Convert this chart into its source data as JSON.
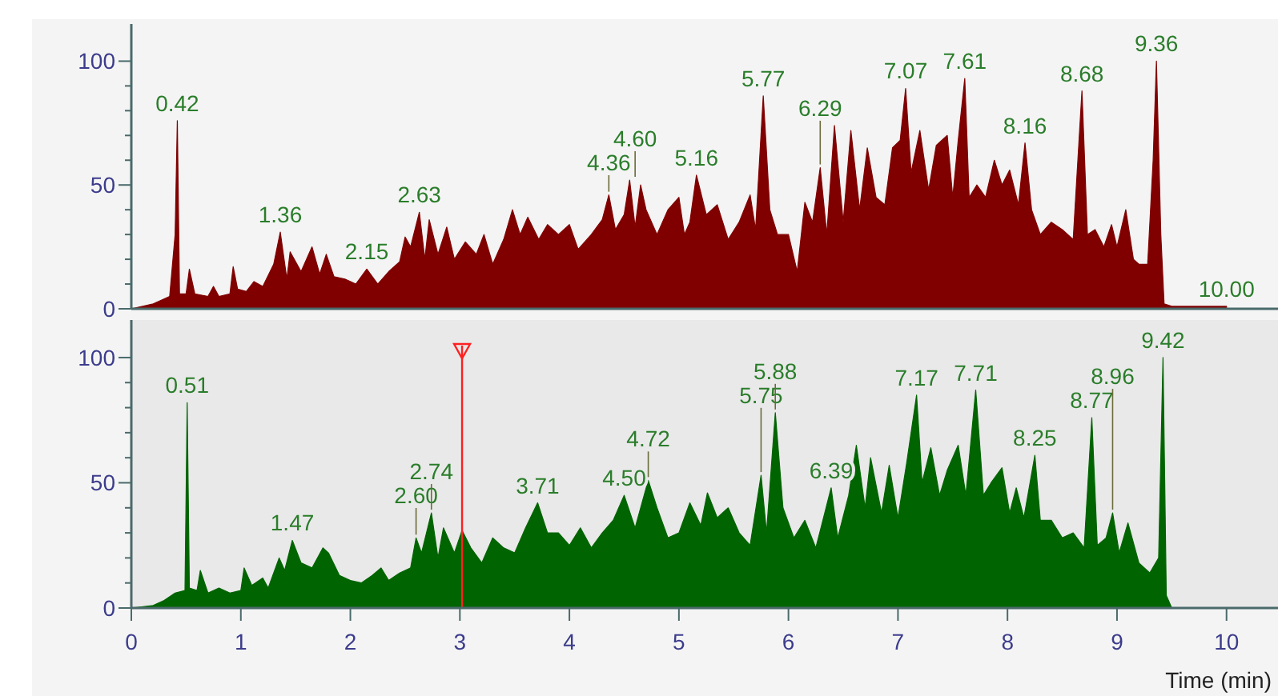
{
  "chart_data": [
    {
      "type": "area",
      "tick_labels": "y",
      "xlim": [
        0,
        10.47
      ],
      "ylim": [
        0,
        115
      ],
      "yticks": [
        0,
        {
          "value": 10,
          "label": null
        },
        {
          "value": 20,
          "label": null
        },
        {
          "value": 30,
          "label": null
        },
        {
          "value": 40,
          "label": null
        },
        50,
        {
          "value": 60,
          "label": null
        },
        {
          "value": 70,
          "label": null
        },
        {
          "value": 80,
          "label": null
        },
        {
          "value": 90,
          "label": null
        },
        100
      ],
      "x": [
        0,
        0.2,
        0.35,
        0.4,
        0.42,
        0.44,
        0.5,
        0.53,
        0.58,
        0.7,
        0.75,
        0.8,
        0.9,
        0.93,
        0.97,
        1.05,
        1.12,
        1.2,
        1.3,
        1.36,
        1.42,
        1.45,
        1.55,
        1.65,
        1.72,
        1.78,
        1.85,
        1.95,
        2.05,
        2.15,
        2.25,
        2.35,
        2.45,
        2.5,
        2.55,
        2.63,
        2.68,
        2.72,
        2.8,
        2.88,
        2.95,
        3.05,
        3.15,
        3.22,
        3.3,
        3.4,
        3.48,
        3.55,
        3.62,
        3.72,
        3.8,
        3.9,
        4.0,
        4.08,
        4.2,
        4.3,
        4.36,
        4.42,
        4.5,
        4.55,
        4.6,
        4.65,
        4.7,
        4.8,
        4.9,
        5.0,
        5.05,
        5.1,
        5.16,
        5.25,
        5.35,
        5.45,
        5.55,
        5.65,
        5.7,
        5.77,
        5.83,
        5.9,
        6.0,
        6.08,
        6.15,
        6.22,
        6.29,
        6.35,
        6.42,
        6.5,
        6.57,
        6.65,
        6.72,
        6.8,
        6.88,
        6.95,
        7.02,
        7.07,
        7.12,
        7.2,
        7.28,
        7.35,
        7.45,
        7.5,
        7.55,
        7.61,
        7.65,
        7.72,
        7.8,
        7.88,
        7.95,
        8.02,
        8.1,
        8.16,
        8.22,
        8.3,
        8.4,
        8.5,
        8.6,
        8.68,
        8.73,
        8.8,
        8.88,
        8.95,
        9.0,
        9.08,
        9.15,
        9.2,
        9.28,
        9.33,
        9.36,
        9.4,
        9.43,
        9.5,
        10.0
      ],
      "series": [
        {
          "color": "#800000",
          "values": [
            0,
            2,
            5,
            30,
            76,
            6,
            6,
            16,
            6,
            5,
            9,
            5,
            6,
            17,
            8,
            7,
            11,
            9,
            18,
            31,
            12,
            23,
            15,
            25,
            14,
            22,
            13,
            12,
            10,
            16,
            10,
            15,
            19,
            29,
            25,
            39,
            20,
            36,
            22,
            33,
            20,
            27,
            22,
            30,
            18,
            28,
            40,
            30,
            37,
            28,
            34,
            30,
            34,
            24,
            30,
            36,
            46,
            32,
            38,
            52,
            33,
            50,
            40,
            30,
            40,
            45,
            30,
            35,
            54,
            38,
            42,
            28,
            35,
            46,
            32,
            86,
            40,
            30,
            30,
            15,
            43,
            35,
            57,
            30,
            74,
            35,
            72,
            40,
            65,
            45,
            42,
            65,
            68,
            89,
            55,
            72,
            48,
            66,
            70,
            45,
            68,
            93,
            45,
            50,
            45,
            60,
            50,
            56,
            42,
            67,
            40,
            30,
            35,
            32,
            28,
            88,
            30,
            32,
            25,
            34,
            25,
            40,
            20,
            18,
            18,
            60,
            100,
            30,
            2,
            1,
            1
          ]
        }
      ],
      "annotations": [
        {
          "text": "0.42",
          "x": 0.42,
          "y": 76
        },
        {
          "text": "1.36",
          "x": 1.36,
          "y": 31
        },
        {
          "text": "2.15",
          "x": 2.15,
          "y": 16
        },
        {
          "text": "2.63",
          "x": 2.63,
          "y": 39
        },
        {
          "text": "4.36",
          "x": 4.36,
          "y": 46
        },
        {
          "text": "4.60",
          "x": 4.6,
          "y": 52
        },
        {
          "text": "5.16",
          "x": 5.16,
          "y": 54
        },
        {
          "text": "5.77",
          "x": 5.77,
          "y": 86
        },
        {
          "text": "6.29",
          "x": 6.29,
          "y": 57
        },
        {
          "text": "7.07",
          "x": 7.07,
          "y": 89
        },
        {
          "text": "7.61",
          "x": 7.61,
          "y": 93
        },
        {
          "text": "8.16",
          "x": 8.16,
          "y": 67
        },
        {
          "text": "8.68",
          "x": 8.68,
          "y": 88
        },
        {
          "text": "9.36",
          "x": 9.36,
          "y": 100
        },
        {
          "text": "10.00",
          "x": 10.0,
          "y": 1
        }
      ]
    },
    {
      "type": "area",
      "xlabel": "Time (min)",
      "xlim": [
        0,
        10.47
      ],
      "ylim": [
        0,
        115
      ],
      "xticks": [
        0,
        1,
        2,
        3,
        4,
        5,
        6,
        7,
        8,
        9,
        10
      ],
      "yticks": [
        0,
        {
          "value": 10,
          "label": null
        },
        {
          "value": 20,
          "label": null
        },
        {
          "value": 30,
          "label": null
        },
        {
          "value": 40,
          "label": null
        },
        50,
        {
          "value": 60,
          "label": null
        },
        {
          "value": 70,
          "label": null
        },
        {
          "value": 80,
          "label": null
        },
        {
          "value": 90,
          "label": null
        },
        100
      ],
      "x": [
        0,
        0.2,
        0.3,
        0.4,
        0.49,
        0.51,
        0.53,
        0.6,
        0.63,
        0.7,
        0.8,
        0.9,
        1.0,
        1.03,
        1.1,
        1.2,
        1.25,
        1.35,
        1.4,
        1.47,
        1.55,
        1.65,
        1.75,
        1.8,
        1.9,
        2.0,
        2.1,
        2.2,
        2.28,
        2.35,
        2.45,
        2.55,
        2.6,
        2.65,
        2.74,
        2.8,
        2.85,
        2.95,
        3.02,
        3.1,
        3.2,
        3.3,
        3.4,
        3.5,
        3.6,
        3.71,
        3.8,
        3.9,
        4.0,
        4.1,
        4.2,
        4.3,
        4.4,
        4.5,
        4.6,
        4.72,
        4.8,
        4.9,
        5.0,
        5.1,
        5.2,
        5.26,
        5.35,
        5.45,
        5.55,
        5.65,
        5.75,
        5.8,
        5.88,
        5.95,
        6.05,
        6.15,
        6.25,
        6.32,
        6.39,
        6.45,
        6.55,
        6.62,
        6.7,
        6.75,
        6.85,
        6.92,
        7.0,
        7.08,
        7.17,
        7.22,
        7.3,
        7.38,
        7.45,
        7.55,
        7.62,
        7.71,
        7.78,
        7.85,
        7.95,
        8.02,
        8.08,
        8.15,
        8.25,
        8.3,
        8.4,
        8.5,
        8.6,
        8.7,
        8.77,
        8.82,
        8.9,
        8.96,
        9.02,
        9.1,
        9.2,
        9.3,
        9.38,
        9.42,
        9.45,
        9.5,
        10.47
      ],
      "series": [
        {
          "color": "#006400",
          "values": [
            0,
            1,
            3,
            6,
            7,
            82,
            8,
            7,
            15,
            6,
            8,
            6,
            7,
            16,
            9,
            12,
            8,
            20,
            15,
            27,
            18,
            16,
            24,
            22,
            13,
            11,
            10,
            13,
            16,
            11,
            14,
            16,
            28,
            22,
            38,
            20,
            32,
            22,
            31,
            24,
            18,
            28,
            24,
            22,
            32,
            42,
            30,
            30,
            25,
            32,
            24,
            30,
            35,
            45,
            32,
            51,
            40,
            28,
            30,
            42,
            33,
            46,
            36,
            40,
            30,
            25,
            53,
            30,
            78,
            40,
            28,
            35,
            24,
            36,
            48,
            28,
            45,
            65,
            40,
            60,
            38,
            57,
            36,
            58,
            85,
            50,
            64,
            45,
            55,
            65,
            45,
            87,
            45,
            50,
            56,
            38,
            48,
            36,
            61,
            35,
            35,
            28,
            30,
            24,
            76,
            25,
            28,
            38,
            22,
            34,
            18,
            14,
            20,
            100,
            5,
            0,
            0
          ]
        }
      ],
      "ref_lines": [
        {
          "axis": "x",
          "value": 3.02,
          "color": "#ff2020"
        }
      ],
      "annotations": [
        {
          "text": "0.51",
          "x": 0.51,
          "y": 82
        },
        {
          "text": "1.47",
          "x": 1.47,
          "y": 27
        },
        {
          "text": "2.60",
          "x": 2.6,
          "y": 28
        },
        {
          "text": "2.74",
          "x": 2.74,
          "y": 38
        },
        {
          "text": "3.71",
          "x": 3.71,
          "y": 42
        },
        {
          "text": "4.50",
          "x": 4.5,
          "y": 45
        },
        {
          "text": "4.72",
          "x": 4.72,
          "y": 51
        },
        {
          "text": "5.75",
          "x": 5.75,
          "y": 53
        },
        {
          "text": "5.88",
          "x": 5.88,
          "y": 78
        },
        {
          "text": "6.39",
          "x": 6.39,
          "y": 48
        },
        {
          "text": "7.17",
          "x": 7.17,
          "y": 85
        },
        {
          "text": "7.71",
          "x": 7.71,
          "y": 87
        },
        {
          "text": "8.25",
          "x": 8.25,
          "y": 61
        },
        {
          "text": "8.77",
          "x": 8.77,
          "y": 76
        },
        {
          "text": "8.96",
          "x": 8.96,
          "y": 38
        },
        {
          "text": "9.42",
          "x": 9.42,
          "y": 100
        }
      ]
    }
  ]
}
